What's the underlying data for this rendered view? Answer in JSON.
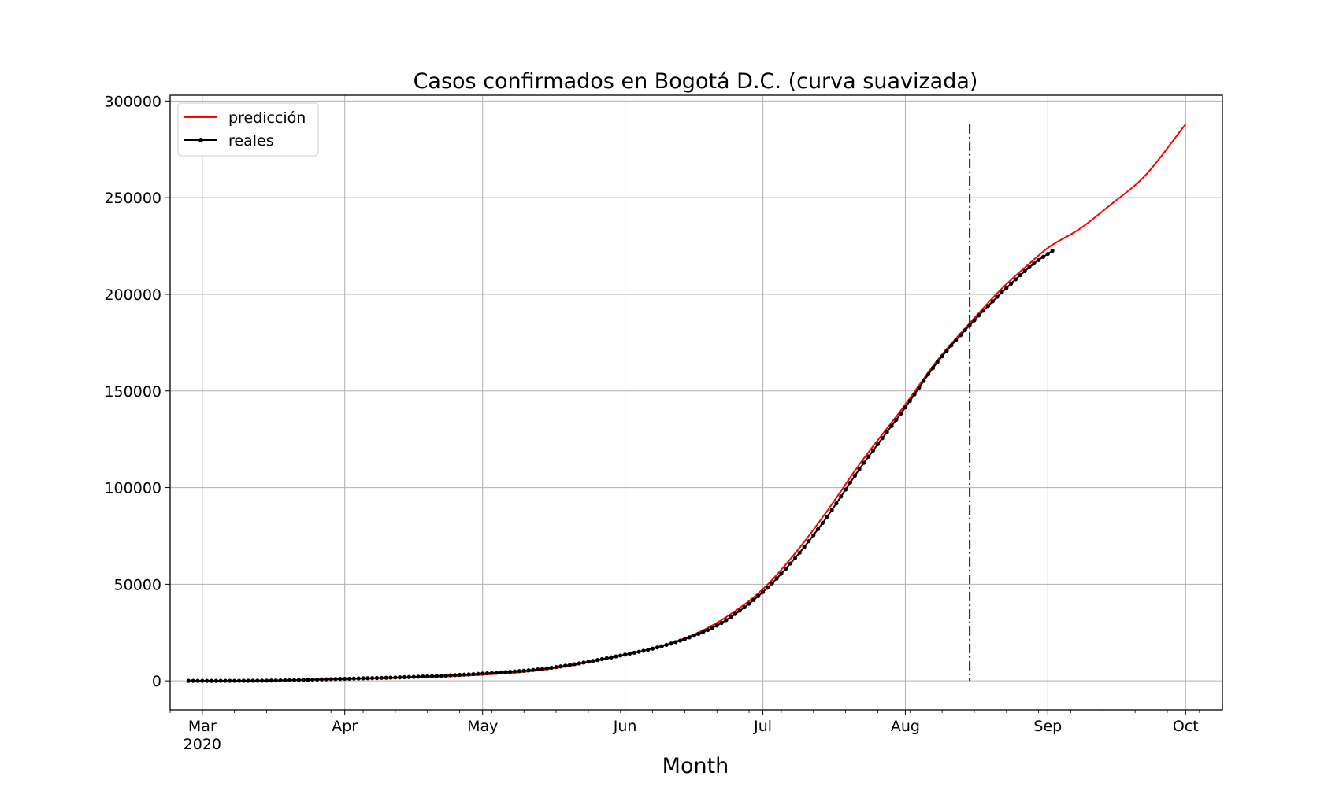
{
  "chart_data": {
    "type": "line",
    "title": "Casos confirmados en Bogotá D.C. (curva suavizada)",
    "xlabel": "Month",
    "ylabel": "",
    "x_axis": "date",
    "xlim": [
      "2020-02-23",
      "2020-10-09"
    ],
    "ylim": [
      -15000,
      303000
    ],
    "grid": true,
    "legend_placement": "top-left",
    "x_ticks": [
      {
        "date": "2020-03-01",
        "label": "Mar",
        "sublabel": "2020"
      },
      {
        "date": "2020-04-01",
        "label": "Apr",
        "sublabel": ""
      },
      {
        "date": "2020-05-01",
        "label": "May",
        "sublabel": ""
      },
      {
        "date": "2020-06-01",
        "label": "Jun",
        "sublabel": ""
      },
      {
        "date": "2020-07-01",
        "label": "Jul",
        "sublabel": ""
      },
      {
        "date": "2020-08-01",
        "label": "Aug",
        "sublabel": ""
      },
      {
        "date": "2020-09-01",
        "label": "Sep",
        "sublabel": ""
      },
      {
        "date": "2020-10-01",
        "label": "Oct",
        "sublabel": ""
      }
    ],
    "y_ticks": [
      {
        "value": 0,
        "label": "0"
      },
      {
        "value": 50000,
        "label": "50000"
      },
      {
        "value": 100000,
        "label": "100000"
      },
      {
        "value": 150000,
        "label": "150000"
      },
      {
        "value": 200000,
        "label": "200000"
      },
      {
        "value": 250000,
        "label": "250000"
      },
      {
        "value": 300000,
        "label": "300000"
      }
    ],
    "vertical_line": {
      "date": "2020-08-15",
      "ymin": 0,
      "ymax": 288000,
      "color": "#0000cc",
      "style": "dashdot"
    },
    "series": [
      {
        "name": "predicción",
        "color": "#ff0000",
        "marker": false,
        "points": [
          [
            "2020-02-27",
            0
          ],
          [
            "2020-03-15",
            200
          ],
          [
            "2020-04-01",
            900
          ],
          [
            "2020-04-15",
            1700
          ],
          [
            "2020-05-01",
            3200
          ],
          [
            "2020-05-15",
            6000
          ],
          [
            "2020-06-01",
            13500
          ],
          [
            "2020-06-08",
            17500
          ],
          [
            "2020-06-15",
            23000
          ],
          [
            "2020-06-22",
            31500
          ],
          [
            "2020-07-01",
            47500
          ],
          [
            "2020-07-08",
            66000
          ],
          [
            "2020-07-15",
            88000
          ],
          [
            "2020-07-22",
            112000
          ],
          [
            "2020-08-01",
            143000
          ],
          [
            "2020-08-08",
            166000
          ],
          [
            "2020-08-15",
            185000
          ],
          [
            "2020-08-22",
            203000
          ],
          [
            "2020-08-29",
            218000
          ],
          [
            "2020-09-01",
            224000
          ],
          [
            "2020-09-08",
            234000
          ],
          [
            "2020-09-15",
            247000
          ],
          [
            "2020-09-22",
            261000
          ],
          [
            "2020-10-01",
            288000
          ]
        ]
      },
      {
        "name": "reales",
        "color": "#000000",
        "marker": true,
        "points": [
          [
            "2020-02-27",
            0
          ],
          [
            "2020-03-15",
            150
          ],
          [
            "2020-04-01",
            1100
          ],
          [
            "2020-04-15",
            2000
          ],
          [
            "2020-05-01",
            3800
          ],
          [
            "2020-05-15",
            6500
          ],
          [
            "2020-06-01",
            13600
          ],
          [
            "2020-06-08",
            17300
          ],
          [
            "2020-06-15",
            22500
          ],
          [
            "2020-06-22",
            30000
          ],
          [
            "2020-07-01",
            46000
          ],
          [
            "2020-07-08",
            63500
          ],
          [
            "2020-07-15",
            85000
          ],
          [
            "2020-07-22",
            109500
          ],
          [
            "2020-08-01",
            141500
          ],
          [
            "2020-08-08",
            165000
          ],
          [
            "2020-08-15",
            184000
          ],
          [
            "2020-08-22",
            201000
          ],
          [
            "2020-08-29",
            216000
          ],
          [
            "2020-09-02",
            222500
          ]
        ]
      }
    ]
  }
}
